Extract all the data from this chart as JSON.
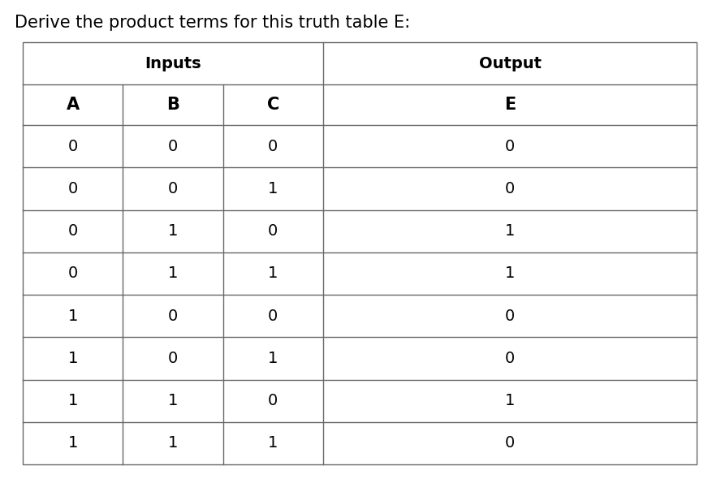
{
  "title": "Derive the product terms for this truth table E:",
  "title_fontsize": 15,
  "title_color": "#000000",
  "background_color": "#ffffff",
  "inputs_label": "Inputs",
  "output_label": "Output",
  "col_headers": [
    "A",
    "B",
    "C",
    "E"
  ],
  "rows": [
    [
      "0",
      "0",
      "0",
      "0"
    ],
    [
      "0",
      "0",
      "1",
      "0"
    ],
    [
      "0",
      "1",
      "0",
      "1"
    ],
    [
      "0",
      "1",
      "1",
      "1"
    ],
    [
      "1",
      "0",
      "0",
      "0"
    ],
    [
      "1",
      "0",
      "1",
      "0"
    ],
    [
      "1",
      "1",
      "0",
      "1"
    ],
    [
      "1",
      "1",
      "1",
      "0"
    ]
  ],
  "line_color": "#666666",
  "line_width": 1.0,
  "header_font_size": 13,
  "data_font_size": 14
}
